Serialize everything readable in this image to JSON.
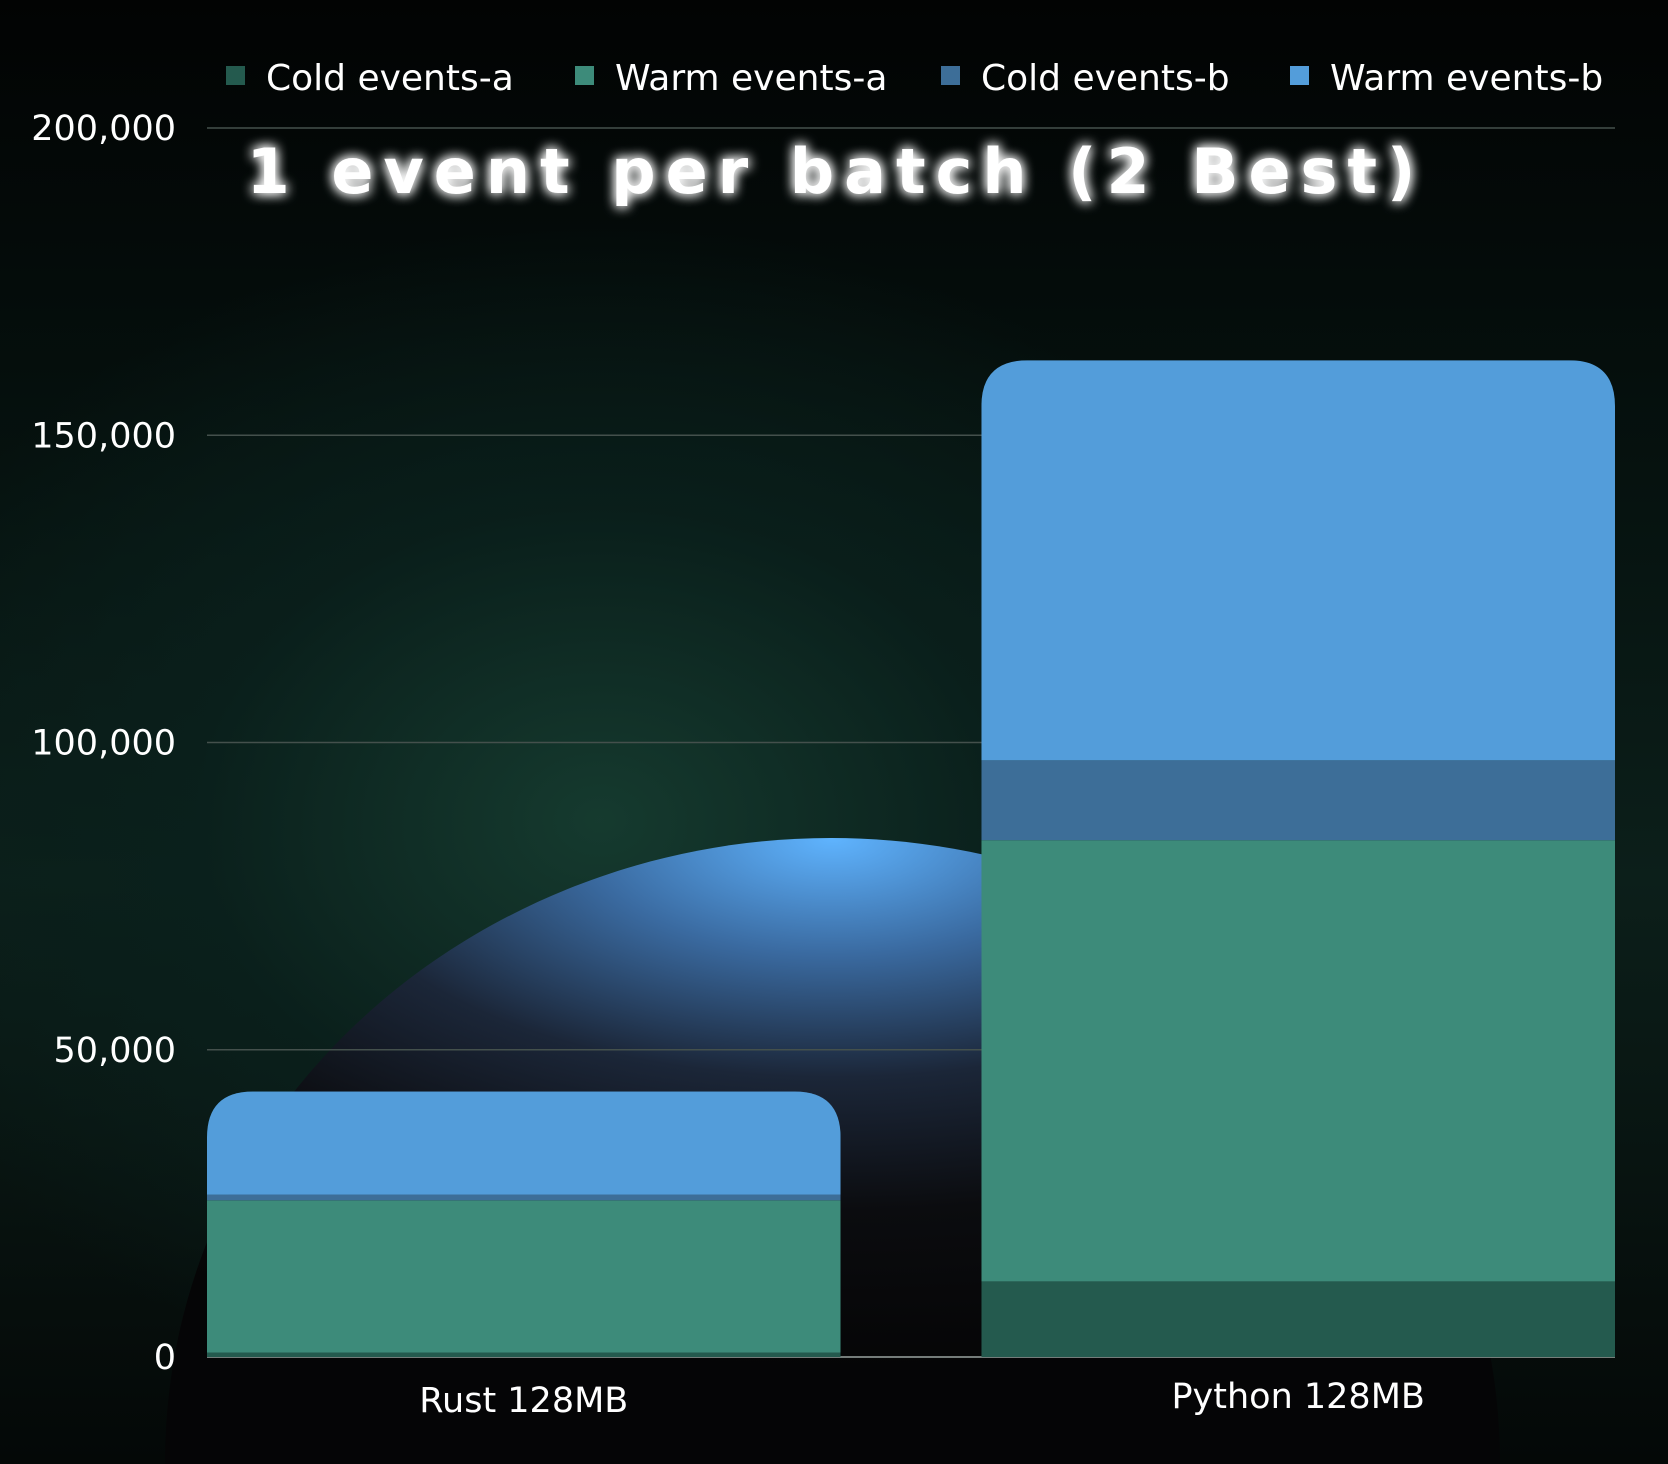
{
  "chart_data": {
    "type": "bar",
    "stacked": true,
    "title": "1 event per batch (2 Best)",
    "categories": [
      "Rust 128MB",
      "Python 128MB"
    ],
    "series": [
      {
        "name": "Cold events-a",
        "color": "#245a4e",
        "values": [
          700,
          12300
        ]
      },
      {
        "name": "Warm events-a",
        "color": "#3d8b7a",
        "values": [
          24800,
          71800
        ]
      },
      {
        "name": "Cold events-b",
        "color": "#3d6e98",
        "values": [
          900,
          13000
        ]
      },
      {
        "name": "Warm events-b",
        "color": "#539dda",
        "values": [
          16800,
          65100
        ]
      }
    ],
    "y_ticks": [
      "0",
      "50,000",
      "100,000",
      "150,000",
      "200,000"
    ],
    "ylim": [
      0,
      200000
    ],
    "grid": true,
    "legend_position": "top"
  }
}
